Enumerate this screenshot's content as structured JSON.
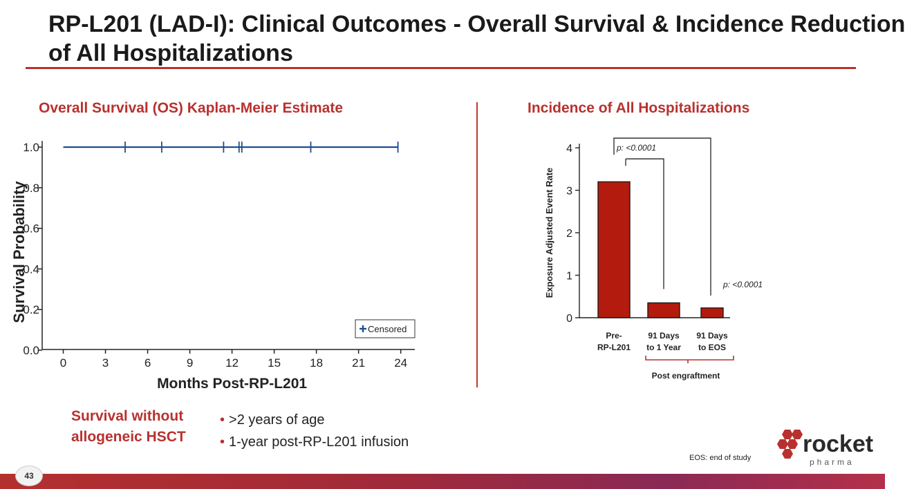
{
  "slide": {
    "title_line1": "RP-L201 (LAD-I): Clinical Outcomes - Overall Survival & Incidence Reduction",
    "title_line2": "of All Hospitalizations",
    "page_number": "43",
    "footnote": "EOS: end of study",
    "logo_word": "rocket",
    "logo_sub": "pharma",
    "colors": {
      "accent": "#b8312f",
      "line_blue": "#1f4e8c",
      "bar_red": "#b31b0f"
    }
  },
  "left_panel": {
    "title": "Overall Survival (OS) Kaplan-Meier Estimate",
    "caption_line1": "Survival without",
    "caption_line2": "allogeneic HSCT",
    "bullets": [
      ">2 years of age",
      "1-year post-RP-L201 infusion"
    ]
  },
  "right_panel": {
    "title": "Incidence of All Hospitalizations",
    "bracket_label": "Post engraftment"
  },
  "chart_data": [
    {
      "type": "line",
      "title": "",
      "xlabel": "Months Post-RP-L201",
      "ylabel": "Survival Probability",
      "xlim": [
        -1.5,
        25
      ],
      "ylim": [
        0,
        1.0
      ],
      "x_ticks": [
        0,
        3,
        6,
        9,
        12,
        15,
        18,
        21,
        24
      ],
      "y_ticks": [
        0.0,
        0.2,
        0.4,
        0.6,
        0.8,
        1.0
      ],
      "y_tick_labels": [
        "0.0",
        "0.2",
        "0.4",
        "0.6",
        "0.8",
        "1.0"
      ],
      "series": [
        {
          "x": [
            0,
            23.8
          ],
          "y": [
            1.0,
            1.0
          ]
        }
      ],
      "censored_x": [
        4.4,
        7.0,
        11.4,
        12.5,
        12.7,
        17.6,
        23.8
      ],
      "legend": {
        "entries": [
          "Censored"
        ],
        "position": "bottom-right"
      },
      "grid": false
    },
    {
      "type": "bar",
      "title": "",
      "xlabel": "",
      "ylabel": "Exposure Adjusted Event Rate",
      "ylim": [
        0,
        4
      ],
      "y_ticks": [
        0,
        1,
        2,
        3,
        4
      ],
      "categories": [
        [
          "Pre-",
          "RP-L201"
        ],
        [
          "91 Days",
          "to 1 Year"
        ],
        [
          "91 Days",
          "to EOS"
        ]
      ],
      "values": [
        3.2,
        0.35,
        0.23
      ],
      "annotations": [
        "p: <0.0001",
        "p: <0.0001"
      ],
      "grid": false
    }
  ]
}
